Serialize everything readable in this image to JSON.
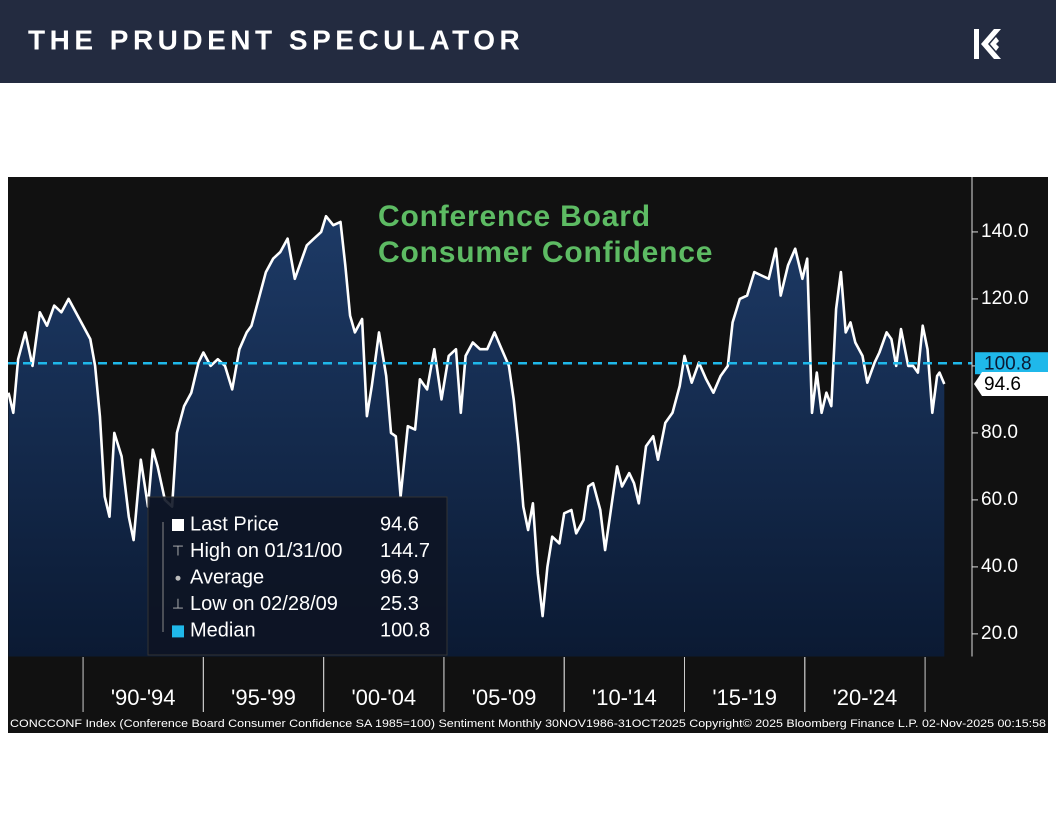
{
  "header": {
    "title": "THE PRUDENT SPECULATOR"
  },
  "chart_data": {
    "type": "line",
    "title_lines": [
      "Conference Board",
      "Consumer Confidence"
    ],
    "x": [
      1986.9,
      1987.1,
      1987.3,
      1987.6,
      1987.9,
      1988.2,
      1988.5,
      1988.8,
      1989.1,
      1989.4,
      1989.7,
      1990.0,
      1990.3,
      1990.5,
      1990.7,
      1990.9,
      1991.1,
      1991.3,
      1991.6,
      1991.9,
      1992.1,
      1992.4,
      1992.7,
      1992.9,
      1993.1,
      1993.4,
      1993.7,
      1993.9,
      1994.2,
      1994.5,
      1994.8,
      1995.0,
      1995.3,
      1995.6,
      1995.9,
      1996.2,
      1996.5,
      1996.8,
      1997.0,
      1997.3,
      1997.6,
      1997.9,
      1998.2,
      1998.5,
      1998.8,
      1999.0,
      1999.3,
      1999.6,
      1999.9,
      2000.1,
      2000.4,
      2000.7,
      2000.9,
      2001.1,
      2001.3,
      2001.6,
      2001.8,
      2002.0,
      2002.3,
      2002.6,
      2002.8,
      2003.0,
      2003.2,
      2003.5,
      2003.8,
      2004.0,
      2004.3,
      2004.6,
      2004.9,
      2005.2,
      2005.5,
      2005.7,
      2005.9,
      2006.2,
      2006.5,
      2006.8,
      2007.1,
      2007.4,
      2007.7,
      2007.9,
      2008.1,
      2008.3,
      2008.5,
      2008.7,
      2008.9,
      2009.1,
      2009.3,
      2009.5,
      2009.8,
      2010.0,
      2010.3,
      2010.5,
      2010.8,
      2011.0,
      2011.2,
      2011.5,
      2011.7,
      2011.9,
      2012.2,
      2012.4,
      2012.7,
      2012.9,
      2013.1,
      2013.4,
      2013.7,
      2013.9,
      2014.2,
      2014.5,
      2014.8,
      2015.0,
      2015.3,
      2015.6,
      2015.9,
      2016.2,
      2016.5,
      2016.8,
      2017.0,
      2017.3,
      2017.6,
      2017.9,
      2018.2,
      2018.5,
      2018.8,
      2019.0,
      2019.3,
      2019.6,
      2019.9,
      2020.1,
      2020.3,
      2020.5,
      2020.7,
      2020.9,
      2021.1,
      2021.3,
      2021.5,
      2021.7,
      2021.9,
      2022.1,
      2022.4,
      2022.6,
      2022.9,
      2023.1,
      2023.4,
      2023.6,
      2023.8,
      2024.0,
      2024.3,
      2024.5,
      2024.7,
      2024.9,
      2025.1,
      2025.3,
      2025.5,
      2025.6,
      2025.8
    ],
    "values": [
      92,
      86,
      102,
      110,
      100,
      116,
      112,
      118,
      116,
      120,
      116,
      112,
      108,
      100,
      85,
      61,
      55,
      80,
      73,
      55,
      48,
      72,
      58,
      75,
      70,
      60,
      58,
      80,
      88,
      92,
      101,
      104,
      100,
      102,
      100,
      93,
      105,
      110,
      112,
      120,
      128,
      132,
      134,
      138,
      126,
      130,
      136,
      138,
      140,
      144.7,
      142,
      143,
      130,
      115,
      110,
      114,
      85,
      94,
      110,
      97,
      80,
      79,
      61,
      82,
      81,
      96,
      93,
      105,
      90,
      103,
      105,
      86,
      103,
      107,
      105,
      105,
      110,
      105,
      100,
      90,
      76,
      58,
      51,
      59,
      38,
      25.3,
      40,
      49,
      47,
      56,
      57,
      50,
      54,
      64,
      65,
      57,
      45,
      55,
      70,
      64,
      68,
      65,
      59,
      76,
      79,
      72,
      83,
      86,
      94,
      103,
      95,
      101,
      96,
      92,
      97,
      100,
      113,
      120,
      121,
      128,
      127,
      126,
      135,
      121,
      130,
      135,
      126,
      132,
      86,
      98,
      86,
      92,
      88,
      117,
      128,
      110,
      113,
      107,
      103,
      95,
      101,
      104,
      110,
      108,
      100,
      111,
      100,
      100,
      98,
      112,
      105,
      86,
      97,
      98,
      94.6
    ],
    "color": "#ffffff",
    "fill_color": "#1d3a66",
    "xlim": [
      1986.88,
      2026.95
    ],
    "ylim": [
      13.1,
      156.4
    ],
    "yticks": [
      {
        "value": 20,
        "label": "20.0"
      },
      {
        "value": 40,
        "label": "40.0"
      },
      {
        "value": 60,
        "label": "60.0"
      },
      {
        "value": 80,
        "label": "80.0"
      },
      {
        "value": 100,
        "label": "100.0"
      },
      {
        "value": 120,
        "label": "120.0"
      },
      {
        "value": 140,
        "label": "140.0"
      }
    ],
    "x_bands": [
      {
        "label": "'90-'94",
        "start": 1990,
        "end": 1995
      },
      {
        "label": "'95-'99",
        "start": 1995,
        "end": 2000
      },
      {
        "label": "'00-'04",
        "start": 2000,
        "end": 2005
      },
      {
        "label": "'05-'09",
        "start": 2005,
        "end": 2010
      },
      {
        "label": "'10-'14",
        "start": 2010,
        "end": 2015
      },
      {
        "label": "'15-'19",
        "start": 2015,
        "end": 2020
      },
      {
        "label": "'20-'24",
        "start": 2020,
        "end": 2025
      }
    ],
    "median_color": "#1fb8ea",
    "stats": [
      {
        "label": "Last Price",
        "value": 94.6
      },
      {
        "label": "High on 01/31/00",
        "value": 144.7
      },
      {
        "label": "Average",
        "value": 96.9
      },
      {
        "label": "Low on 02/28/09",
        "value": 25.3
      },
      {
        "label": "Median",
        "value": 100.8
      }
    ],
    "footer": "CONCCONF Index (Conference Board Consumer Confidence SA 1985=100) Sentiment Monthly 30NOV1986-31OCT2025 Copyright© 2025 Bloomberg Finance L.P. 02-Nov-2025 00:15:58"
  }
}
